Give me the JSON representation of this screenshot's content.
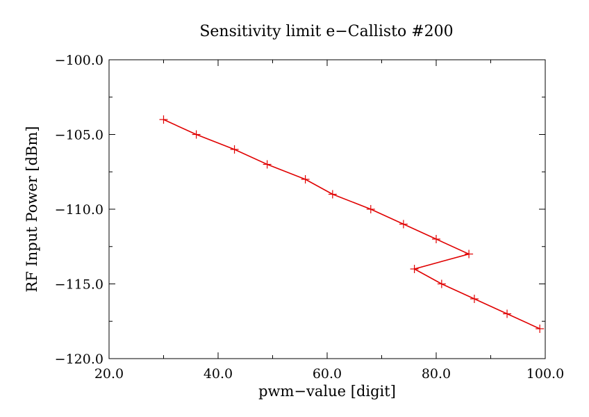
{
  "chart_data": {
    "type": "line",
    "title": "Sensitivity limit e−Callisto #200",
    "xlabel": "pwm−value [digit]",
    "ylabel": "RF Input Power [dBm]",
    "xlim": [
      20,
      100
    ],
    "ylim": [
      -120,
      -100
    ],
    "x_ticks": [
      20,
      40,
      60,
      80,
      100
    ],
    "x_tick_labels": [
      "20.0",
      "40.0",
      "60.0",
      "80.0",
      "100.0"
    ],
    "x_minor_step": 10,
    "y_ticks": [
      -100,
      -105,
      -110,
      -115,
      -120
    ],
    "y_tick_labels": [
      "−100.0",
      "−105.0",
      "−110.0",
      "−115.0",
      "−120.0"
    ],
    "y_minor_step": 2.5,
    "grid": false,
    "colors": {
      "series": "#e00000",
      "axes": "#000000"
    },
    "series": [
      {
        "x": [
          30,
          36,
          43,
          49,
          56,
          61,
          68,
          74,
          80,
          86,
          76,
          81,
          87,
          93,
          99
        ],
        "y": [
          -104,
          -105,
          -106,
          -107,
          -108,
          -109,
          -110,
          -111,
          -112,
          -113,
          -114,
          -115,
          -116,
          -117,
          -118
        ]
      }
    ]
  }
}
